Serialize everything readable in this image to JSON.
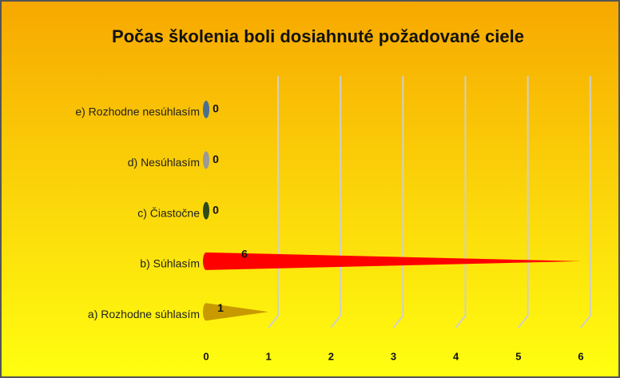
{
  "chart_data": {
    "type": "cone-bar",
    "title": "Počas školenia boli dosiahnuté požadované ciele",
    "categories": [
      "a) Rozhodne súhlasím",
      "b) Súhlasím",
      "c) Čiastočne",
      "d) Nesúhlasím",
      "e) Rozhodne nesúhlasím"
    ],
    "values": [
      1,
      6,
      0,
      0,
      0
    ],
    "colors": [
      "#c89a00",
      "#ff0000",
      "#2e4a1a",
      "#9a9a9a",
      "#4a7090"
    ],
    "xlim": [
      0,
      6
    ],
    "xticks": [
      0,
      1,
      2,
      3,
      4,
      5,
      6
    ],
    "grid": true
  }
}
